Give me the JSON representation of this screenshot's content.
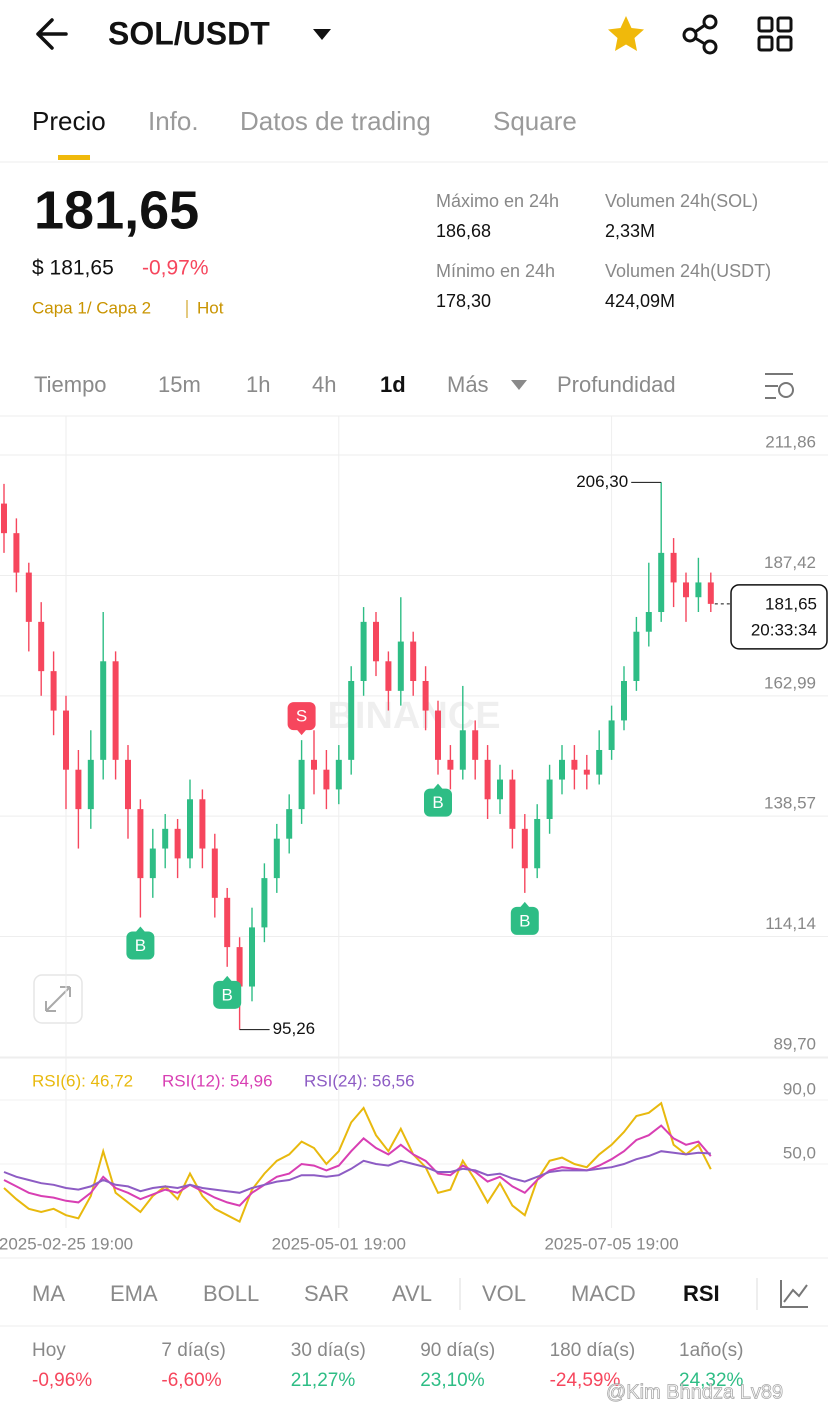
{
  "header": {
    "pair": "SOL/USDT"
  },
  "tabs": [
    "Precio",
    "Info.",
    "Datos de trading",
    "Square"
  ],
  "price": {
    "last": "181,65",
    "usd": "$ 181,65",
    "change": "-0,97%",
    "tags": [
      "Capa 1/ Capa 2",
      "Hot"
    ]
  },
  "stats": [
    {
      "label": "Máximo en 24h",
      "value": "186,68"
    },
    {
      "label": "Volumen 24h(SOL)",
      "value": "2,33M"
    },
    {
      "label": "Mínimo en 24h",
      "value": "178,30"
    },
    {
      "label": "Volumen 24h(USDT)",
      "value": "424,09M"
    }
  ],
  "intervals": [
    "Tiempo",
    "15m",
    "1h",
    "4h",
    "1d",
    "Más",
    "Profundidad"
  ],
  "chart_data": [
    {
      "type": "candlestick",
      "watermark": "BINANCE",
      "categories": [
        null,
        null,
        null,
        null,
        null,
        "2025-02-25 19:00",
        null,
        null,
        null,
        null,
        null,
        null,
        null,
        null,
        null,
        null,
        null,
        null,
        null,
        null,
        null,
        null,
        null,
        null,
        null,
        null,
        null,
        "2025-05-01 19:00",
        null,
        null,
        null,
        null,
        null,
        null,
        null,
        null,
        null,
        null,
        null,
        null,
        null,
        null,
        null,
        null,
        null,
        null,
        null,
        null,
        null,
        "2025-07-05 19:00",
        null,
        null,
        null,
        null,
        null,
        null,
        null,
        null
      ],
      "open": [
        202,
        196,
        188,
        178,
        168,
        160,
        148,
        140,
        150,
        170,
        150,
        140,
        126,
        132,
        136,
        130,
        142,
        132,
        122,
        112,
        104,
        116,
        126,
        134,
        140,
        150,
        148,
        144,
        150,
        166,
        178,
        170,
        164,
        174,
        166,
        160,
        150,
        148,
        156,
        150,
        142,
        146,
        136,
        128,
        138,
        146,
        150,
        148,
        147,
        152,
        158,
        166,
        176,
        180,
        192,
        186,
        183,
        186
      ],
      "high": [
        206,
        199,
        190,
        182,
        172,
        163,
        152,
        156,
        180,
        172,
        153,
        142,
        136,
        139,
        138,
        146,
        144,
        135,
        124,
        114,
        120,
        129,
        137,
        143,
        154,
        156,
        152,
        153,
        169,
        181,
        180,
        172,
        183,
        176,
        169,
        162,
        153,
        165,
        158,
        153,
        149,
        148,
        139,
        141,
        149,
        153,
        153,
        151,
        156,
        161,
        169,
        179,
        190,
        206.3,
        195,
        188,
        191,
        188
      ],
      "low": [
        192,
        184,
        172,
        163,
        155,
        140,
        132,
        136,
        146,
        146,
        134,
        118,
        122,
        128,
        126,
        128,
        128,
        118,
        108,
        95.26,
        101,
        113,
        123,
        131,
        137,
        143,
        140,
        141,
        147,
        163,
        167,
        160,
        161,
        163,
        156,
        147,
        144,
        146,
        146,
        138,
        139,
        132,
        123,
        126,
        135,
        143,
        144,
        144,
        145,
        150,
        156,
        164,
        173,
        178,
        181,
        178,
        180,
        180
      ],
      "close": [
        196,
        188,
        178,
        168,
        160,
        148,
        140,
        150,
        170,
        150,
        140,
        126,
        132,
        136,
        130,
        142,
        132,
        122,
        112,
        104,
        116,
        126,
        134,
        140,
        150,
        148,
        144,
        150,
        166,
        178,
        170,
        164,
        174,
        166,
        160,
        150,
        148,
        156,
        150,
        142,
        146,
        136,
        128,
        138,
        146,
        150,
        148,
        147,
        152,
        158,
        166,
        176,
        180,
        192,
        186,
        183,
        186,
        181.65
      ],
      "up_color": "#2ebd85",
      "down_color": "#f6465d",
      "ylim": [
        89.7,
        211.86
      ],
      "yticks": [
        {
          "value": 89.7,
          "label": "89,70"
        },
        {
          "value": 114.14,
          "label": "114,14"
        },
        {
          "value": 138.57,
          "label": "138,57"
        },
        {
          "value": 162.99,
          "label": "162,99"
        },
        {
          "value": 187.42,
          "label": "187,42"
        },
        {
          "value": 211.86,
          "label": "211,86"
        }
      ],
      "grid": true,
      "last_price": {
        "value": 181.65,
        "label": "181,65"
      },
      "last_time": "20:33:34",
      "annotations": [
        {
          "index": 53,
          "value": 206.3,
          "label": "206,30"
        },
        {
          "index": 19,
          "value": 95.26,
          "label": "95,26"
        }
      ],
      "markers": [
        {
          "index": 11,
          "label": "B"
        },
        {
          "index": 18,
          "label": "B"
        },
        {
          "index": 24,
          "label": "S"
        },
        {
          "index": 35,
          "label": "B"
        },
        {
          "index": 42,
          "label": "B"
        }
      ]
    },
    {
      "type": "line",
      "ylim": [
        10,
        108
      ],
      "yticks": [
        {
          "value": 50,
          "label": "50,0"
        },
        {
          "value": 90,
          "label": "90,0"
        }
      ],
      "series": [
        {
          "name": "RSI(6): 46,72",
          "color": "#e8b90e",
          "values": [
            35,
            28,
            22,
            20,
            22,
            18,
            16,
            30,
            58,
            32,
            26,
            20,
            30,
            36,
            28,
            44,
            30,
            22,
            18,
            14,
            34,
            44,
            52,
            56,
            64,
            60,
            50,
            58,
            76,
            85,
            68,
            58,
            72,
            56,
            48,
            32,
            34,
            52,
            40,
            26,
            38,
            24,
            18,
            40,
            52,
            54,
            50,
            48,
            56,
            62,
            70,
            80,
            82,
            88,
            62,
            56,
            62,
            46.72
          ]
        },
        {
          "name": "RSI(12): 54,96",
          "color": "#d83fb3",
          "values": [
            40,
            36,
            32,
            30,
            29,
            27,
            26,
            32,
            42,
            35,
            32,
            28,
            31,
            34,
            32,
            37,
            33,
            29,
            26,
            24,
            32,
            37,
            42,
            44,
            50,
            49,
            46,
            49,
            58,
            66,
            60,
            56,
            62,
            56,
            52,
            44,
            43,
            49,
            45,
            39,
            42,
            36,
            32,
            40,
            46,
            48,
            47,
            46,
            49,
            53,
            58,
            65,
            68,
            74,
            66,
            62,
            64,
            54.96
          ]
        },
        {
          "name": "RSI(24): 56,56",
          "color": "#8d5cc4",
          "values": [
            45,
            42,
            40,
            38,
            37,
            35,
            34,
            36,
            40,
            37,
            36,
            33,
            35,
            36,
            35,
            37,
            35,
            34,
            33,
            32,
            35,
            37,
            39,
            40,
            43,
            43,
            42,
            43,
            47,
            52,
            50,
            49,
            52,
            50,
            48,
            45,
            45,
            47,
            46,
            43,
            44,
            41,
            39,
            42,
            45,
            46,
            46,
            46,
            47,
            48,
            50,
            53,
            55,
            58,
            57,
            56,
            57,
            56.56
          ]
        }
      ]
    }
  ],
  "indicators": [
    "MA",
    "EMA",
    "BOLL",
    "SAR",
    "AVL",
    "VOL",
    "MACD",
    "RSI"
  ],
  "performance": [
    {
      "period": "Hoy",
      "change": "-0,96%"
    },
    {
      "period": "7 día(s)",
      "change": "-6,60%"
    },
    {
      "period": "30 día(s)",
      "change": "21,27%"
    },
    {
      "period": "90 día(s)",
      "change": "23,10%"
    },
    {
      "period": "180 día(s)",
      "change": "-24,59%"
    },
    {
      "period": "1año(s)",
      "change": "24,32%"
    }
  ],
  "watermark": "@Kim Bhndza Lv89"
}
